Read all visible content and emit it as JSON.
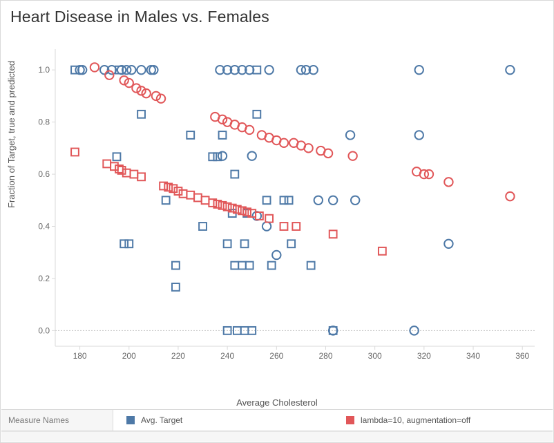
{
  "title": "Heart Disease in Males vs. Females",
  "x_axis": {
    "label": "Average Cholesterol",
    "min": 170,
    "max": 365,
    "ticks": [
      180,
      200,
      220,
      240,
      260,
      280,
      300,
      320,
      340,
      360
    ]
  },
  "y_axis": {
    "label": "Fraction of Target, true and predicted",
    "min": -0.06,
    "max": 1.08,
    "ticks": [
      0.0,
      0.2,
      0.4,
      0.6,
      0.8,
      1.0
    ]
  },
  "colors": {
    "series_a": "#4e79a7",
    "series_b": "#e15759",
    "axis": "#d9d9d9",
    "tick_text": "#666666",
    "zero_line": "#bfbfbf"
  },
  "marker": {
    "size": 6.2,
    "stroke_width": 2.0,
    "square_half": 5.4
  },
  "legend": {
    "header": "Measure Names",
    "items": [
      {
        "label": "Avg. Target",
        "shape": "square",
        "color_key": "series_a"
      },
      {
        "label": "lambda=10, augmentation=off",
        "shape": "square",
        "color_key": "series_b"
      }
    ]
  },
  "series": [
    {
      "name": "avg-target-circle",
      "shape": "circle",
      "color_key": "series_a",
      "points": [
        [
          180,
          1.0
        ],
        [
          181,
          1.0
        ],
        [
          190,
          1.0
        ],
        [
          193,
          1.0
        ],
        [
          197,
          1.0
        ],
        [
          199,
          1.0
        ],
        [
          201,
          1.0
        ],
        [
          205,
          1.0
        ],
        [
          209,
          1.0
        ],
        [
          210,
          1.0
        ],
        [
          237,
          1.0
        ],
        [
          240,
          1.0
        ],
        [
          243,
          1.0
        ],
        [
          246,
          1.0
        ],
        [
          249,
          1.0
        ],
        [
          257,
          1.0
        ],
        [
          270,
          1.0
        ],
        [
          272,
          1.0
        ],
        [
          275,
          1.0
        ],
        [
          318,
          1.0
        ],
        [
          355,
          1.0
        ],
        [
          238,
          0.67
        ],
        [
          250,
          0.67
        ],
        [
          290,
          0.75
        ],
        [
          318,
          0.75
        ],
        [
          252,
          0.44
        ],
        [
          256,
          0.4
        ],
        [
          260,
          0.29
        ],
        [
          277,
          0.5
        ],
        [
          283,
          0.5
        ],
        [
          292,
          0.5
        ],
        [
          283,
          0.0
        ],
        [
          316,
          0.0
        ],
        [
          330,
          0.333
        ]
      ]
    },
    {
      "name": "avg-target-square",
      "shape": "square",
      "color_key": "series_a",
      "points": [
        [
          178,
          1.0
        ],
        [
          196,
          1.0
        ],
        [
          252,
          1.0
        ],
        [
          205,
          0.83
        ],
        [
          195,
          0.667
        ],
        [
          225,
          0.75
        ],
        [
          238,
          0.75
        ],
        [
          252,
          0.83
        ],
        [
          198,
          0.333
        ],
        [
          200,
          0.333
        ],
        [
          234,
          0.667
        ],
        [
          236,
          0.667
        ],
        [
          243,
          0.6
        ],
        [
          263,
          0.5
        ],
        [
          265,
          0.5
        ],
        [
          219,
          0.25
        ],
        [
          240,
          0.333
        ],
        [
          247,
          0.333
        ],
        [
          258,
          0.25
        ],
        [
          274,
          0.25
        ],
        [
          215,
          0.5
        ],
        [
          230,
          0.4
        ],
        [
          242,
          0.45
        ],
        [
          248,
          0.45
        ],
        [
          256,
          0.5
        ],
        [
          266,
          0.333
        ],
        [
          219,
          0.167
        ],
        [
          243,
          0.25
        ],
        [
          246,
          0.25
        ],
        [
          249,
          0.25
        ],
        [
          240,
          0.0
        ],
        [
          244,
          0.0
        ],
        [
          247,
          0.0
        ],
        [
          250,
          0.0
        ],
        [
          283,
          0.0
        ]
      ]
    },
    {
      "name": "lambda-circle",
      "shape": "circle",
      "color_key": "series_b",
      "points": [
        [
          186,
          1.01
        ],
        [
          192,
          0.98
        ],
        [
          198,
          0.96
        ],
        [
          200,
          0.95
        ],
        [
          203,
          0.93
        ],
        [
          205,
          0.92
        ],
        [
          207,
          0.91
        ],
        [
          211,
          0.9
        ],
        [
          213,
          0.89
        ],
        [
          235,
          0.82
        ],
        [
          238,
          0.81
        ],
        [
          240,
          0.8
        ],
        [
          243,
          0.79
        ],
        [
          246,
          0.78
        ],
        [
          249,
          0.77
        ],
        [
          254,
          0.75
        ],
        [
          257,
          0.74
        ],
        [
          260,
          0.73
        ],
        [
          263,
          0.72
        ],
        [
          267,
          0.72
        ],
        [
          270,
          0.71
        ],
        [
          273,
          0.7
        ],
        [
          278,
          0.69
        ],
        [
          281,
          0.68
        ],
        [
          291,
          0.67
        ],
        [
          317,
          0.61
        ],
        [
          320,
          0.6
        ],
        [
          322,
          0.6
        ],
        [
          330,
          0.57
        ],
        [
          355,
          0.515
        ]
      ]
    },
    {
      "name": "lambda-square",
      "shape": "square",
      "color_key": "series_b",
      "points": [
        [
          178,
          0.685
        ],
        [
          191,
          0.64
        ],
        [
          194,
          0.63
        ],
        [
          196,
          0.62
        ],
        [
          197,
          0.615
        ],
        [
          199,
          0.605
        ],
        [
          202,
          0.6
        ],
        [
          205,
          0.59
        ],
        [
          214,
          0.555
        ],
        [
          216,
          0.55
        ],
        [
          218,
          0.545
        ],
        [
          220,
          0.535
        ],
        [
          222,
          0.525
        ],
        [
          225,
          0.52
        ],
        [
          228,
          0.51
        ],
        [
          231,
          0.5
        ],
        [
          234,
          0.49
        ],
        [
          236,
          0.485
        ],
        [
          238,
          0.48
        ],
        [
          240,
          0.475
        ],
        [
          242,
          0.47
        ],
        [
          244,
          0.465
        ],
        [
          246,
          0.46
        ],
        [
          248,
          0.455
        ],
        [
          250,
          0.45
        ],
        [
          253,
          0.44
        ],
        [
          257,
          0.43
        ],
        [
          263,
          0.4
        ],
        [
          268,
          0.4
        ],
        [
          283,
          0.37
        ],
        [
          303,
          0.305
        ]
      ]
    }
  ]
}
